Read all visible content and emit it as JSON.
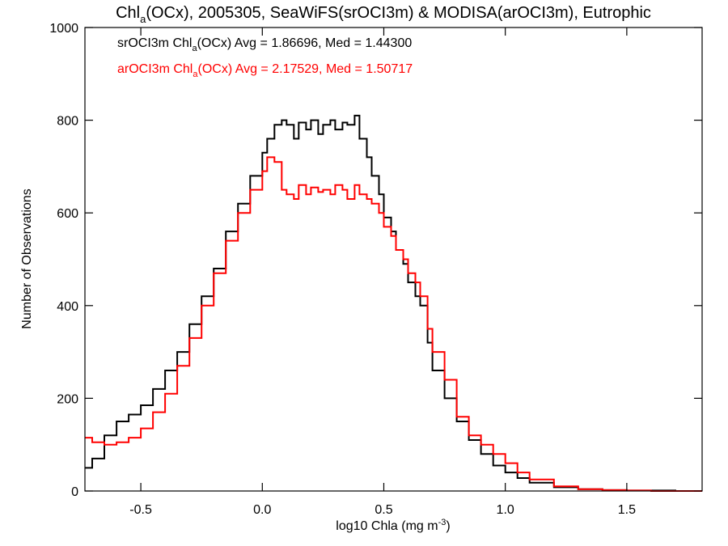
{
  "chart_data": {
    "type": "line",
    "title_parts": {
      "pre": "Chl",
      "sub": "a",
      "post": "(OCx), 2005305, SeaWiFS(srOCI3m) & MODISA(arOCI3m), Eutrophic"
    },
    "xlabel": "log10 Chla (mg m",
    "xlabel_sup": "-3",
    "xlabel_close": ")",
    "ylabel": "Number of Observations",
    "xlim": [
      -0.73,
      1.81
    ],
    "ylim": [
      0,
      1000
    ],
    "x_ticks": [
      -0.5,
      0.0,
      0.5,
      1.0,
      1.5
    ],
    "x_tick_labels": [
      "-0.5",
      "0.0",
      "0.5",
      "1.0",
      "1.5"
    ],
    "y_ticks": [
      0,
      200,
      400,
      600,
      800,
      1000
    ],
    "y_tick_labels": [
      "0",
      "200",
      "400",
      "600",
      "800",
      "1000"
    ],
    "grid": false,
    "legend_position": "top-left",
    "series": [
      {
        "label_pre": "srOCI3m Chl",
        "label_sub": "a",
        "label_post": "(OCx) Avg = 1.86696, Med = 1.44300",
        "color": "#000000",
        "x": [
          -0.73,
          -0.7,
          -0.65,
          -0.6,
          -0.55,
          -0.5,
          -0.45,
          -0.4,
          -0.35,
          -0.3,
          -0.25,
          -0.2,
          -0.15,
          -0.1,
          -0.05,
          0.0,
          0.02,
          0.05,
          0.08,
          0.1,
          0.13,
          0.15,
          0.18,
          0.2,
          0.23,
          0.25,
          0.28,
          0.3,
          0.33,
          0.35,
          0.38,
          0.4,
          0.43,
          0.45,
          0.48,
          0.5,
          0.53,
          0.55,
          0.58,
          0.6,
          0.63,
          0.65,
          0.68,
          0.7,
          0.75,
          0.8,
          0.85,
          0.9,
          0.95,
          1.0,
          1.05,
          1.1,
          1.2,
          1.3,
          1.4,
          1.5,
          1.6,
          1.7,
          1.81
        ],
        "y": [
          50,
          70,
          120,
          150,
          165,
          185,
          220,
          260,
          300,
          360,
          420,
          480,
          560,
          620,
          680,
          730,
          760,
          790,
          800,
          790,
          760,
          795,
          780,
          800,
          770,
          790,
          800,
          780,
          795,
          790,
          810,
          760,
          720,
          680,
          640,
          590,
          560,
          520,
          490,
          450,
          420,
          400,
          320,
          260,
          200,
          150,
          110,
          80,
          55,
          40,
          28,
          18,
          8,
          4,
          2,
          1,
          1,
          0,
          0
        ]
      },
      {
        "label_pre": "arOCI3m Chl",
        "label_sub": "a",
        "label_post": "(OCx) Avg = 2.17529, Med = 1.50717",
        "color": "#ff0000",
        "x": [
          -0.73,
          -0.7,
          -0.65,
          -0.6,
          -0.55,
          -0.5,
          -0.45,
          -0.4,
          -0.35,
          -0.3,
          -0.25,
          -0.2,
          -0.15,
          -0.1,
          -0.05,
          0.0,
          0.02,
          0.05,
          0.08,
          0.1,
          0.13,
          0.15,
          0.18,
          0.2,
          0.23,
          0.25,
          0.28,
          0.3,
          0.33,
          0.35,
          0.38,
          0.4,
          0.43,
          0.45,
          0.48,
          0.5,
          0.53,
          0.55,
          0.58,
          0.6,
          0.63,
          0.65,
          0.68,
          0.7,
          0.75,
          0.8,
          0.85,
          0.9,
          0.95,
          1.0,
          1.05,
          1.1,
          1.2,
          1.3,
          1.4,
          1.5,
          1.6,
          1.7,
          1.81
        ],
        "y": [
          115,
          105,
          100,
          105,
          115,
          135,
          170,
          210,
          270,
          330,
          400,
          470,
          540,
          600,
          650,
          690,
          720,
          710,
          650,
          640,
          630,
          660,
          640,
          655,
          645,
          650,
          640,
          660,
          650,
          630,
          660,
          640,
          630,
          620,
          600,
          570,
          550,
          520,
          500,
          470,
          450,
          420,
          350,
          300,
          240,
          160,
          120,
          100,
          80,
          60,
          40,
          25,
          10,
          4,
          2,
          1,
          0,
          0,
          0
        ]
      }
    ]
  }
}
